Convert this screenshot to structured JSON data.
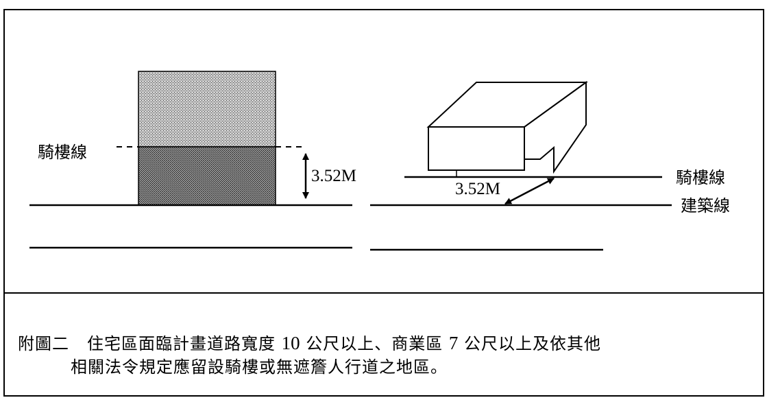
{
  "diagram": {
    "left": {
      "arcade_line_label": "騎樓線",
      "height_label": "3.52M"
    },
    "right": {
      "arcade_line_label": "騎樓線",
      "building_line_label": "建築線",
      "width_label": "3.52M"
    }
  },
  "caption": {
    "figure_label": "附圖二",
    "line1_a": "住宅區面臨計畫道路寬度 ",
    "num1": "10",
    "line1_b": " 公尺以上、商業區 ",
    "num2": "7",
    "line1_c": " 公尺以上及依其他",
    "line2": "相關法令規定應留設騎樓或無遮簷人行道之地區。"
  }
}
